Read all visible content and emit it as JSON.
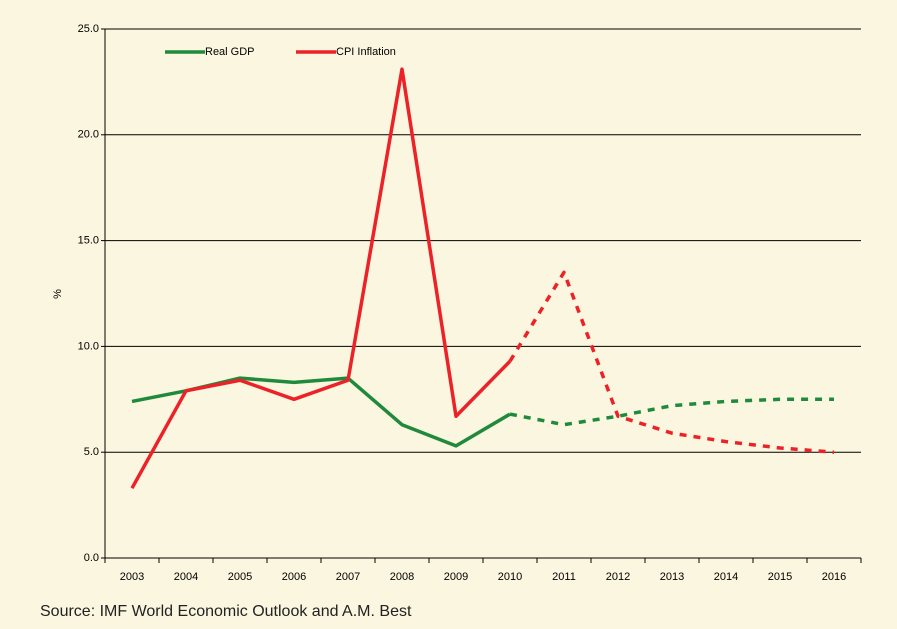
{
  "chart_data": {
    "type": "line",
    "y_label": "%",
    "source": "Source: IMF World Economic Outlook and A.M. Best",
    "categories": [
      "2003",
      "2004",
      "2005",
      "2006",
      "2007",
      "2008",
      "2009",
      "2010",
      "2011",
      "2012",
      "2013",
      "2014",
      "2015",
      "2016"
    ],
    "forecast_from": "2010",
    "series": [
      {
        "name": "Real GDP",
        "color": "#1f8a3c",
        "values": [
          7.4,
          7.9,
          8.5,
          8.3,
          8.5,
          6.3,
          5.3,
          6.8,
          6.3,
          6.7,
          7.2,
          7.4,
          7.5,
          7.5
        ]
      },
      {
        "name": "CPI Inflation",
        "color": "#ec2228",
        "values": [
          3.3,
          7.9,
          8.4,
          7.5,
          8.4,
          23.1,
          6.7,
          9.3,
          13.5,
          6.7,
          5.9,
          5.5,
          5.2,
          5.0
        ]
      }
    ],
    "ylim": [
      0,
      25
    ],
    "yticks": [
      {
        "value": 0,
        "label": "0.0"
      },
      {
        "value": 5,
        "label": "5.0"
      },
      {
        "value": 10,
        "label": "10.0"
      },
      {
        "value": 15,
        "label": "15.0"
      },
      {
        "value": 20,
        "label": "20.0"
      },
      {
        "value": 25,
        "label": "25.0"
      }
    ],
    "grid": true
  }
}
